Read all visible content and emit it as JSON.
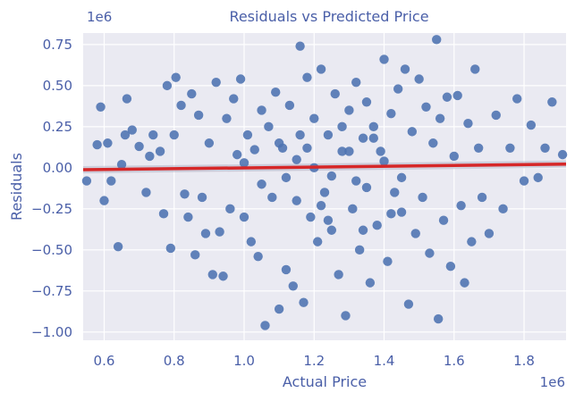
{
  "chart_data": {
    "type": "scatter",
    "title": "Residuals vs Predicted Price",
    "xlabel": "Actual Price",
    "ylabel": "Residuals",
    "x_offset_label": "1e6",
    "y_offset_label": "1e6",
    "xlim": [
      540000,
      1920000
    ],
    "ylim": [
      -1050000,
      820000
    ],
    "x_ticks": [
      600000,
      800000,
      1000000,
      1200000,
      1400000,
      1600000,
      1800000
    ],
    "x_tick_labels": [
      "0.6",
      "0.8",
      "1.0",
      "1.2",
      "1.4",
      "1.6",
      "1.8"
    ],
    "y_ticks": [
      750000,
      500000,
      250000,
      0,
      -250000,
      -500000,
      -750000,
      -1000000
    ],
    "y_tick_labels": [
      "0.75",
      "0.50",
      "0.25",
      "0.00",
      "−0.25",
      "−0.50",
      "−0.75",
      "−1.00"
    ],
    "grid": true,
    "colors": {
      "background": "#eaeaf2",
      "grid": "#ffffff",
      "points": "#4c72b0",
      "regression_line": "#d62728",
      "confidence_band": "#b0b3c6",
      "text": "#4a5fa8"
    },
    "series": [
      {
        "points": [
          [
            550000,
            -80000
          ],
          [
            580000,
            140000
          ],
          [
            590000,
            370000
          ],
          [
            600000,
            -200000
          ],
          [
            610000,
            150000
          ],
          [
            620000,
            -80000
          ],
          [
            640000,
            -480000
          ],
          [
            650000,
            20000
          ],
          [
            660000,
            200000
          ],
          [
            665000,
            420000
          ],
          [
            680000,
            230000
          ],
          [
            700000,
            130000
          ],
          [
            720000,
            -150000
          ],
          [
            730000,
            70000
          ],
          [
            740000,
            200000
          ],
          [
            760000,
            100000
          ],
          [
            770000,
            -280000
          ],
          [
            780000,
            500000
          ],
          [
            790000,
            -490000
          ],
          [
            800000,
            200000
          ],
          [
            805000,
            550000
          ],
          [
            820000,
            380000
          ],
          [
            830000,
            -160000
          ],
          [
            840000,
            -300000
          ],
          [
            850000,
            450000
          ],
          [
            860000,
            -530000
          ],
          [
            870000,
            320000
          ],
          [
            880000,
            -180000
          ],
          [
            890000,
            -400000
          ],
          [
            900000,
            150000
          ],
          [
            910000,
            -650000
          ],
          [
            920000,
            520000
          ],
          [
            930000,
            -390000
          ],
          [
            940000,
            -660000
          ],
          [
            950000,
            300000
          ],
          [
            960000,
            -250000
          ],
          [
            970000,
            420000
          ],
          [
            980000,
            80000
          ],
          [
            990000,
            540000
          ],
          [
            1000000,
            -300000
          ],
          [
            1010000,
            200000
          ],
          [
            1020000,
            -450000
          ],
          [
            1030000,
            110000
          ],
          [
            1040000,
            -540000
          ],
          [
            1050000,
            350000
          ],
          [
            1060000,
            -960000
          ],
          [
            1070000,
            250000
          ],
          [
            1080000,
            -180000
          ],
          [
            1090000,
            460000
          ],
          [
            1100000,
            -860000
          ],
          [
            1110000,
            120000
          ],
          [
            1120000,
            -620000
          ],
          [
            1130000,
            380000
          ],
          [
            1140000,
            -720000
          ],
          [
            1150000,
            50000
          ],
          [
            1160000,
            740000
          ],
          [
            1170000,
            -820000
          ],
          [
            1180000,
            550000
          ],
          [
            1190000,
            -300000
          ],
          [
            1200000,
            300000
          ],
          [
            1210000,
            -450000
          ],
          [
            1220000,
            600000
          ],
          [
            1230000,
            -150000
          ],
          [
            1240000,
            200000
          ],
          [
            1250000,
            -380000
          ],
          [
            1260000,
            450000
          ],
          [
            1270000,
            -650000
          ],
          [
            1280000,
            100000
          ],
          [
            1290000,
            -900000
          ],
          [
            1300000,
            350000
          ],
          [
            1310000,
            -250000
          ],
          [
            1320000,
            520000
          ],
          [
            1330000,
            -500000
          ],
          [
            1340000,
            180000
          ],
          [
            1350000,
            400000
          ],
          [
            1360000,
            -700000
          ],
          [
            1370000,
            250000
          ],
          [
            1380000,
            -350000
          ],
          [
            1390000,
            100000
          ],
          [
            1400000,
            660000
          ],
          [
            1410000,
            -570000
          ],
          [
            1420000,
            330000
          ],
          [
            1430000,
            -150000
          ],
          [
            1440000,
            480000
          ],
          [
            1450000,
            -270000
          ],
          [
            1460000,
            600000
          ],
          [
            1470000,
            -830000
          ],
          [
            1480000,
            220000
          ],
          [
            1490000,
            -400000
          ],
          [
            1500000,
            540000
          ],
          [
            1510000,
            -180000
          ],
          [
            1520000,
            370000
          ],
          [
            1530000,
            -520000
          ],
          [
            1540000,
            150000
          ],
          [
            1550000,
            780000
          ],
          [
            1555000,
            -920000
          ],
          [
            1560000,
            300000
          ],
          [
            1570000,
            -320000
          ],
          [
            1580000,
            430000
          ],
          [
            1590000,
            -600000
          ],
          [
            1600000,
            70000
          ],
          [
            1610000,
            440000
          ],
          [
            1620000,
            -230000
          ],
          [
            1630000,
            -700000
          ],
          [
            1640000,
            270000
          ],
          [
            1650000,
            -450000
          ],
          [
            1660000,
            600000
          ],
          [
            1670000,
            120000
          ],
          [
            1680000,
            -180000
          ],
          [
            1700000,
            -400000
          ],
          [
            1720000,
            320000
          ],
          [
            1740000,
            -250000
          ],
          [
            1760000,
            120000
          ],
          [
            1780000,
            420000
          ],
          [
            1800000,
            -80000
          ],
          [
            1820000,
            260000
          ],
          [
            1840000,
            -60000
          ],
          [
            1860000,
            120000
          ],
          [
            1880000,
            400000
          ],
          [
            1910000,
            80000
          ],
          [
            1000000,
            30000
          ],
          [
            1050000,
            -100000
          ],
          [
            1100000,
            150000
          ],
          [
            1150000,
            -200000
          ],
          [
            1200000,
            0
          ],
          [
            1250000,
            -50000
          ],
          [
            1300000,
            100000
          ],
          [
            1350000,
            -120000
          ],
          [
            1400000,
            40000
          ],
          [
            1450000,
            -60000
          ],
          [
            1180000,
            120000
          ],
          [
            1220000,
            -230000
          ],
          [
            1280000,
            250000
          ],
          [
            1320000,
            -80000
          ],
          [
            1370000,
            180000
          ],
          [
            1120000,
            -60000
          ],
          [
            1160000,
            200000
          ],
          [
            1240000,
            -320000
          ],
          [
            1340000,
            -380000
          ],
          [
            1420000,
            -280000
          ]
        ]
      }
    ],
    "regression_line": {
      "x": [
        540000,
        1920000
      ],
      "y": [
        -12000,
        22000
      ]
    }
  }
}
